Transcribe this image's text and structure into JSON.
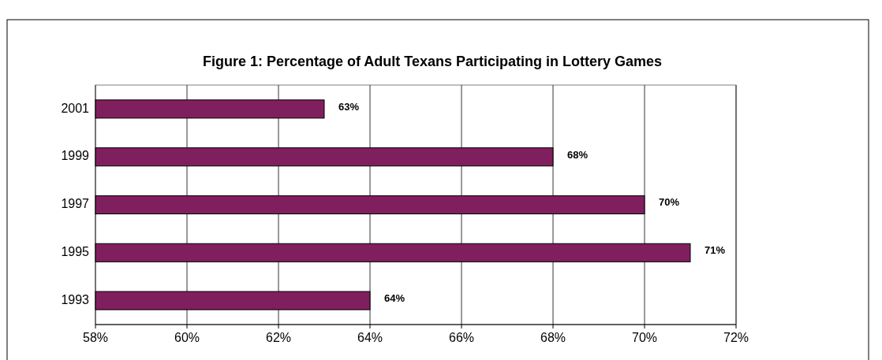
{
  "chart_data": {
    "type": "bar",
    "orientation": "horizontal",
    "title": "Figure 1:  Percentage of Adult Texans Participating in Lottery Games",
    "categories": [
      "2001",
      "1999",
      "1997",
      "1995",
      "1993"
    ],
    "values": [
      63,
      68,
      70,
      71,
      64
    ],
    "value_labels": [
      "63%",
      "68%",
      "70%",
      "71%",
      "64%"
    ],
    "color": "#801f5e",
    "xlim": [
      58,
      72
    ],
    "xticks": [
      {
        "value": 58,
        "label": "58%"
      },
      {
        "value": 60,
        "label": "60%"
      },
      {
        "value": 62,
        "label": "62%"
      },
      {
        "value": 64,
        "label": "64%"
      },
      {
        "value": 66,
        "label": "66%"
      },
      {
        "value": 68,
        "label": "68%"
      },
      {
        "value": 70,
        "label": "70%"
      },
      {
        "value": 72,
        "label": "72%"
      }
    ],
    "grid": "x"
  }
}
